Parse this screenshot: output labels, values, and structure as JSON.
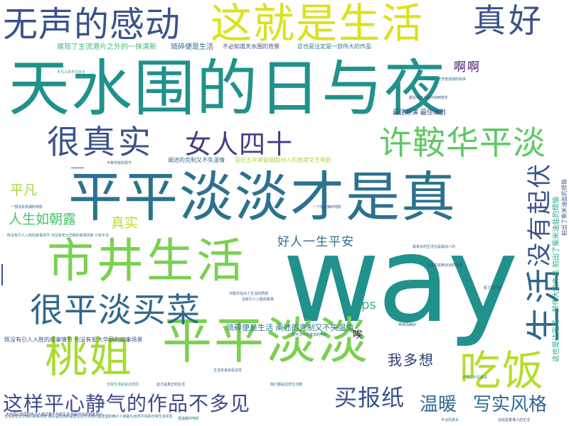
{
  "colors": {
    "background": "#ffffff",
    "palette": [
      "#440154",
      "#3b528b",
      "#21918c",
      "#5ec962",
      "#b5de2b",
      "#fde725"
    ]
  },
  "words": [
    {
      "text": "天水围的日与夜",
      "color": "#21918c"
    },
    {
      "text": "way",
      "color": "#21918c"
    },
    {
      "text": "平平淡淡才是真",
      "color": "#2c728e"
    },
    {
      "text": "市井生活",
      "color": "#7ad151"
    },
    {
      "text": "平平淡淡",
      "color": "#7ad151"
    },
    {
      "text": "这就是生活",
      "color": "#dbe21a"
    },
    {
      "text": "无声的感动",
      "color": "#3b528b"
    },
    {
      "text": "很平淡买菜",
      "color": "#31688e"
    },
    {
      "text": "桃姐",
      "color": "#a8db34"
    },
    {
      "text": "吃饭",
      "color": "#b5de2b"
    },
    {
      "text": "真好",
      "color": "#3b528b"
    },
    {
      "text": "很真实",
      "color": "#3b528b"
    },
    {
      "text": "许鞍华平淡",
      "color": "#5ec962"
    },
    {
      "text": "女人四十",
      "color": "#433e85"
    },
    {
      "text": "生活",
      "color": "#31688e"
    },
    {
      "text": "没有起伏",
      "color": "#3b528b"
    },
    {
      "text": "这样平心静气的作品不多见",
      "color": "#3e4989"
    },
    {
      "text": "买报纸",
      "color": "#3b528b"
    },
    {
      "text": "温暖",
      "color": "#31688e"
    },
    {
      "text": "写实风格",
      "color": "#31688e"
    },
    {
      "text": "我多想",
      "color": "#2c3e70"
    },
    {
      "text": "好人一生平安",
      "color": "#2d708e"
    },
    {
      "text": "人生如朝露",
      "color": "#4ac16d"
    },
    {
      "text": "平凡",
      "color": "#a0da39"
    },
    {
      "text": "真实",
      "color": "#c2df23"
    },
    {
      "text": "啊啊",
      "color": "#481a6c"
    },
    {
      "text": "ps",
      "color": "#3bbb75"
    },
    {
      "text": "唉",
      "color": "#471365"
    },
    {
      "text": "琐碎便是生活 阐述的克制又不失温情",
      "color": "#2c728e"
    },
    {
      "text": "展现了主流港片之外的一抹清新",
      "color": "#3bbb75"
    },
    {
      "text": "琐碎便是生活",
      "color": "#31688e"
    },
    {
      "text": "不必知道天水围的背景",
      "color": "#3e4989"
    },
    {
      "text": "这也是注定是一部伟大的作品",
      "color": "#2a788e"
    },
    {
      "text": "最佳导演 最佳编剧",
      "color": "#3e4989"
    },
    {
      "text": "阐述的克制又不失温情",
      "color": "#31688e"
    },
    {
      "text": "是近五年来最细腻动人的香港文艺电影",
      "color": "#addc30"
    },
    {
      "text": "既没有引人入胜的故事情节 也没有宏大华丽的叙事场景",
      "color": "#3b528b"
    },
    {
      "text": "这也是注定是一部伟大的作品 拍出了柴米油盐的烦恼",
      "color": "#21a585"
    },
    {
      "text": "也没有宏大华丽的叙事场景 镜头呈现出的是居住在天水围公屋居室的两户人家最为自然平实的日常生活状态",
      "color": "#31688e"
    },
    {
      "text": "拍出了柴米油盐的烦恼",
      "color": "#3b528b"
    },
    {
      "text": "就是一个普普通通的故事",
      "color": "#2a788e"
    },
    {
      "text": "都在柴米油盐中找到快乐",
      "color": "#3e4989"
    },
    {
      "text": "最真实的生活也是最动人的",
      "color": "#2c728e"
    },
    {
      "text": "一部没有高潮的电影",
      "color": "#31688e"
    },
    {
      "text": "不靠夸张的情节",
      "color": "#3b528b"
    },
    {
      "text": "平凡人的平凡日子",
      "color": "#21918c"
    },
    {
      "text": "既没有引人入胜的故事情节 也没有宏大华丽的叙事场景 只有平淡",
      "color": "#2a788e"
    },
    {
      "text": "没有引人入胜的故事",
      "color": "#3b528b"
    },
    {
      "text": "天水围公屋里的平凡人家过着平凡的生活 如此平淡却如此动人",
      "color": "#3e4989"
    },
    {
      "text": "一部平淡中见真情的电影",
      "color": "#2c728e"
    },
    {
      "text": "许鞍华拍出了生活的质感",
      "color": "#31688e"
    },
    {
      "text": "日常生活就是这样的",
      "color": "#21918c"
    },
    {
      "text": "这才是真正的生活",
      "color": "#3b528b"
    },
    {
      "text": "平淡之中见真情",
      "color": "#2a788e"
    },
    {
      "text": "很喜欢这种淡淡的感觉",
      "color": "#3e4989"
    },
    {
      "text": "一个很安静的电影",
      "color": "#3b528b"
    },
    {
      "text": "看了很舒服",
      "color": "#3e4989"
    },
    {
      "text": "我们都是这样生活着",
      "color": "#2c728e"
    },
    {
      "text": "平淡而真实",
      "color": "#31688e"
    },
    {
      "text": "这就是香港人的生活",
      "color": "#3b528b"
    },
    {
      "text": "很温暖的电影",
      "color": "#2a788e"
    },
    {
      "text": "简单而美好",
      "color": "#3b528b"
    },
    {
      "text": "生活本来就是这样",
      "color": "#31688e"
    }
  ]
}
